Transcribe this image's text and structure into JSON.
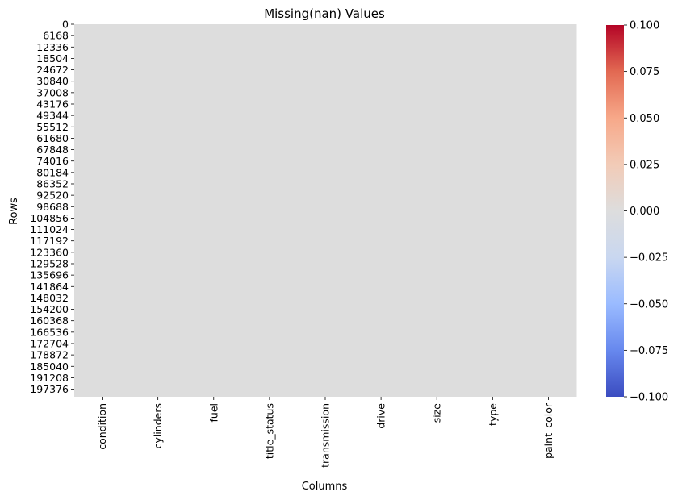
{
  "chart_data": {
    "type": "heatmap",
    "title": "Missing(nan) Values",
    "xlabel": "Columns",
    "ylabel": "Rows",
    "columns": [
      "condition",
      "cylinders",
      "fuel",
      "title_status",
      "transmission",
      "drive",
      "size",
      "type",
      "paint_color"
    ],
    "row_ticks": [
      0,
      6168,
      12336,
      18504,
      24672,
      30840,
      37008,
      43176,
      49344,
      55512,
      61680,
      67848,
      74016,
      80184,
      86352,
      92520,
      98688,
      104856,
      111024,
      117192,
      123360,
      129528,
      135696,
      141864,
      148032,
      154200,
      160368,
      166536,
      172704,
      178872,
      185040,
      191208,
      197376
    ],
    "row_count": 201500,
    "value": 0,
    "colormap": "coolwarm",
    "colorbar": {
      "range": [
        -0.1,
        0.1
      ],
      "ticks": [
        "0.100",
        "0.075",
        "0.050",
        "0.025",
        "0.000",
        "−0.025",
        "−0.050",
        "−0.075",
        "−0.100"
      ],
      "tick_values": [
        0.1,
        0.075,
        0.05,
        0.025,
        0.0,
        -0.025,
        -0.05,
        -0.075,
        -0.1
      ]
    },
    "colors": {
      "cell": "#dddddd",
      "cmap_stops": [
        "#3b4cc0",
        "#6788ee",
        "#9abbff",
        "#c9d7f0",
        "#dddddd",
        "#f2cbb7",
        "#f7a889",
        "#e26952",
        "#b40426"
      ]
    }
  }
}
